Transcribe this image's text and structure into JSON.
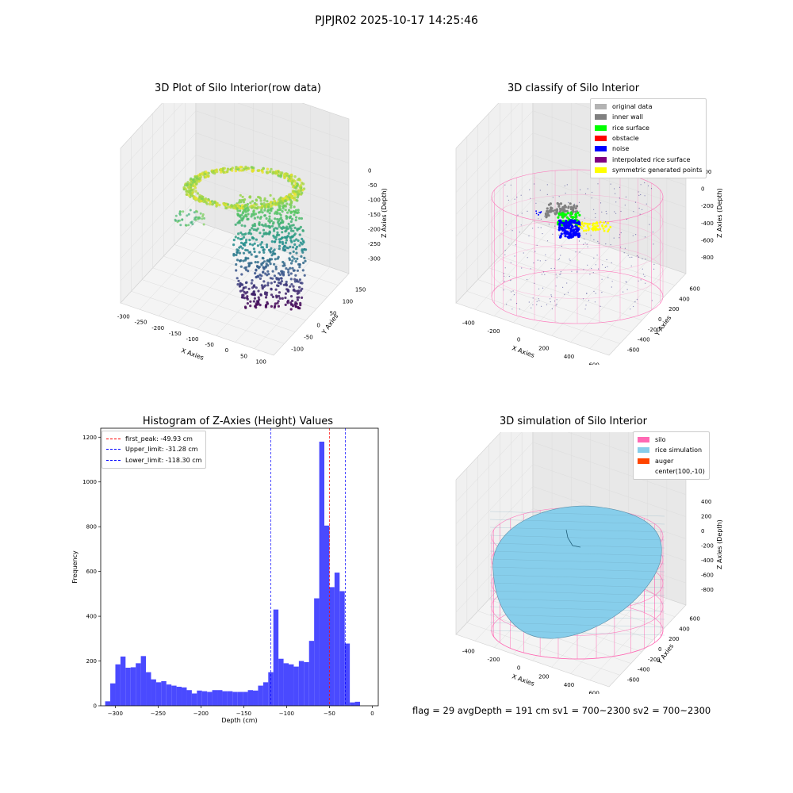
{
  "suptitle": "PJPJR02 2025-10-17 14:25:46",
  "footer": "flag = 29  avgDepth = 191 cm  sv1 = 700~2300  sv2 = 700~2300",
  "colors": {
    "silo": "#ff69b4",
    "rice_simulation": "#87ceeb",
    "auger": "#ff4500",
    "original_data": "#b3b3b3",
    "inner_wall": "#808080",
    "rice_surface": "#00ff00",
    "obstacle": "#ff0000",
    "noise": "#0000ff",
    "interpolated_rice_surface": "#800080",
    "symmetric_generated_points": "#ffff00",
    "hist_bar": "#4a4aff"
  },
  "chart_data": [
    {
      "type": "scatter",
      "subtype": "3d",
      "title": "3D Plot of Silo Interior(row data)",
      "xlabel": "X Axies",
      "ylabel": "Y Axies",
      "zlabel": "Z Axies (Depth)",
      "x_ticks": [
        "-300",
        "-250",
        "-200",
        "-150",
        "-100",
        "-50",
        "0",
        "50",
        "100"
      ],
      "y_ticks": [
        "-100",
        "-50",
        "0",
        "50",
        "100",
        "150"
      ],
      "z_ticks": [
        "0",
        "-50",
        "-100",
        "-150",
        "-200",
        "-250",
        "-300"
      ],
      "colormap": "viridis",
      "grid": true
    },
    {
      "type": "scatter",
      "subtype": "3d",
      "title": "3D classify of Silo Interior",
      "xlabel": "X Axies",
      "ylabel": "Y Axies",
      "zlabel": "Z Axies (Depth)",
      "x_ticks": [
        "-400",
        "-200",
        "0",
        "200",
        "400",
        "600"
      ],
      "y_ticks": [
        "-600",
        "-400",
        "-200",
        "0",
        "200",
        "400",
        "600"
      ],
      "z_ticks": [
        "200",
        "0",
        "-200",
        "-400",
        "-600",
        "-800"
      ],
      "z_ticks_hidden_top": [
        "200"
      ],
      "legend": [
        "original data",
        "inner wall",
        "rice surface",
        "obstacle",
        "noise",
        "interpolated rice surface",
        "symmetric generated points"
      ],
      "legend_loc": "upper right",
      "grid": true
    },
    {
      "type": "bar",
      "subtype": "histogram",
      "title": "Histogram of Z-Axies (Height) Values",
      "xlabel": "Depth (cm)",
      "ylabel": "Frequency",
      "xlim": [
        -317,
        7
      ],
      "ylim": [
        0,
        1240
      ],
      "x_ticks": [
        -300,
        -250,
        -200,
        -150,
        -100,
        -50,
        0
      ],
      "y_ticks": [
        0,
        200,
        400,
        600,
        800,
        1000,
        1200
      ],
      "bin_width": 5.95,
      "bin_start": -311.8,
      "values": [
        20,
        100,
        185,
        220,
        170,
        172,
        190,
        222,
        150,
        118,
        105,
        110,
        95,
        90,
        85,
        82,
        70,
        55,
        68,
        65,
        62,
        70,
        70,
        65,
        65,
        62,
        62,
        62,
        70,
        68,
        90,
        105,
        150,
        430,
        210,
        190,
        185,
        175,
        200,
        195,
        290,
        480,
        1180,
        805,
        530,
        595,
        512,
        278,
        15,
        18
      ],
      "vlines": [
        {
          "label": "first_peak: -49.93 cm",
          "x": -49.93,
          "color": "#ff0000"
        },
        {
          "label": "Upper_limit: -31.28 cm",
          "x": -31.28,
          "color": "#0000ff"
        },
        {
          "label": "Lower_limit: -118.30 cm",
          "x": -118.3,
          "color": "#0000ff"
        }
      ],
      "legend_loc": "upper left",
      "grid": false
    },
    {
      "type": "scatter",
      "subtype": "3d-surface",
      "title": "3D simulation of Silo Interior",
      "xlabel": "X Axies",
      "ylabel": "Y Axies",
      "zlabel": "Z Axies (Depth)",
      "x_ticks": [
        "-400",
        "-200",
        "0",
        "200",
        "400",
        "600"
      ],
      "y_ticks": [
        "-600",
        "-400",
        "-200",
        "0",
        "200",
        "400",
        "600"
      ],
      "z_ticks": [
        "400",
        "200",
        "0",
        "-200",
        "-400",
        "-600",
        "-800"
      ],
      "legend": [
        "silo",
        "rice simulation",
        "auger",
        "center(100,-10)"
      ],
      "legend_loc": "upper right",
      "grid": true
    }
  ]
}
